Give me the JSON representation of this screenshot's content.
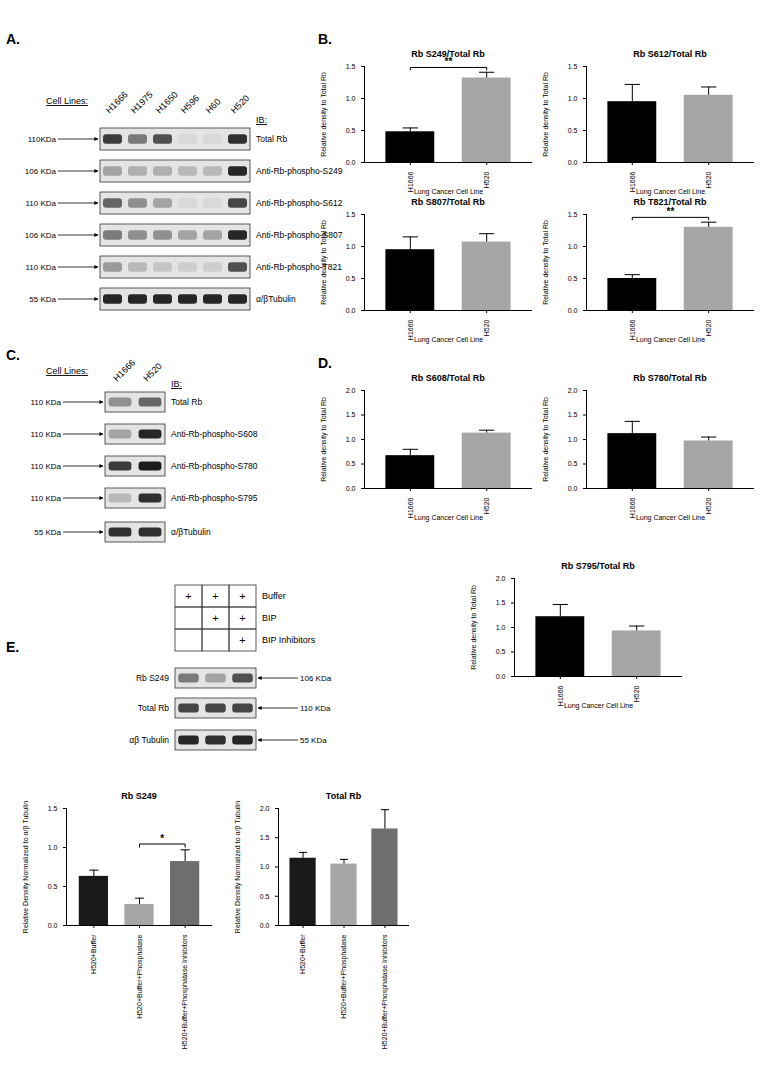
{
  "panels": [
    {
      "label": "A.",
      "blot": {
        "lane_title": "Cell Lines:",
        "lanes": [
          "H1666",
          "H1975",
          "H1650",
          "H596",
          "H60",
          "H520"
        ],
        "ib_title": "IB:",
        "rows": [
          {
            "name": "Total Rb",
            "kda": "110KDa",
            "bands": [
              0.8,
              0.5,
              0.7,
              0.05,
              0.05,
              0.85
            ]
          },
          {
            "name": "Anti-Rb-phospho-S249",
            "kda": "106 KDa",
            "bands": [
              0.3,
              0.25,
              0.25,
              0.2,
              0.2,
              0.9
            ]
          },
          {
            "name": "Anti-Rb-phospho-S612",
            "kda": "110 KDa",
            "bands": [
              0.6,
              0.4,
              0.3,
              0.05,
              0.05,
              0.75
            ]
          },
          {
            "name": "Anti-Rb-phospho-S807",
            "kda": "106 KDa",
            "bands": [
              0.5,
              0.4,
              0.4,
              0.3,
              0.3,
              0.9
            ]
          },
          {
            "name": "Anti-Rb-phospho-T821",
            "kda": "110 KDa",
            "bands": [
              0.35,
              0.2,
              0.15,
              0.1,
              0.1,
              0.7
            ]
          },
          {
            "name": "α/βTubulin",
            "kda": "55 KDa",
            "bands": [
              0.9,
              0.9,
              0.9,
              0.9,
              0.9,
              0.9
            ]
          }
        ]
      }
    },
    {
      "label": "B."
    },
    {
      "label": "C.",
      "blot": {
        "lane_title": "Cell Lines:",
        "lanes": [
          "H1666",
          "H520"
        ],
        "ib_title": "IB:",
        "rows": [
          {
            "name": "Total Rb",
            "kda": "110 KDa",
            "bands": [
              0.4,
              0.6
            ]
          },
          {
            "name": "Anti-Rb-phospho-S608",
            "kda": "110 KDa",
            "bands": [
              0.3,
              0.9
            ]
          },
          {
            "name": "Anti-Rb-phospho-S780",
            "kda": "110 KDa",
            "bands": [
              0.8,
              0.95
            ]
          },
          {
            "name": "Anti-Rb-phospho-S795",
            "kda": "110 KDa",
            "bands": [
              0.2,
              0.85
            ]
          },
          {
            "name": "α/βTubulin",
            "kda": "55 KDa",
            "bands": [
              0.85,
              0.85
            ]
          }
        ]
      }
    },
    {
      "label": "D."
    },
    {
      "label": "E.",
      "treatments": [
        {
          "name": "Buffer",
          "marks": [
            "+",
            "+",
            "+"
          ]
        },
        {
          "name": "BIP",
          "marks": [
            null,
            "+",
            "+"
          ]
        },
        {
          "name": "BIP Inhibitors",
          "marks": [
            null,
            null,
            "+"
          ]
        }
      ],
      "blot": {
        "rows": [
          {
            "name": "Rb S249",
            "kda": "106 KDa",
            "bands": [
              0.5,
              0.3,
              0.7
            ]
          },
          {
            "name": "Total Rb",
            "kda": "110 KDa",
            "bands": [
              0.75,
              0.75,
              0.75
            ]
          },
          {
            "name": "αβ Tubulin",
            "kda": "55 KDa",
            "bands": [
              0.9,
              0.85,
              0.9
            ]
          }
        ]
      }
    }
  ],
  "chart_data": [
    {
      "type": "bar",
      "title": "Rb S249/Total Rb",
      "x_label": "Lung Cancer Cell Line",
      "y_label": "Relative density to Total Rb",
      "categories": [
        "H1666",
        "H520"
      ],
      "values": [
        0.48,
        1.32
      ],
      "errors": [
        0.06,
        0.09
      ],
      "colors": [
        "#000000",
        "#a6a6a6"
      ],
      "ylim": [
        0,
        1.5
      ],
      "yticks": [
        {
          "value": 0,
          "label": "0.0"
        },
        0.5,
        {
          "value": 1,
          "label": "1.0"
        },
        1.5
      ],
      "significance": [
        {
          "between": [
            "H1666",
            "H520"
          ],
          "label": "**"
        }
      ]
    },
    {
      "type": "bar",
      "title": "Rb S612/Total Rb",
      "x_label": "Lung Cancer Cell Line",
      "y_label": "Relative density to Total Rb",
      "categories": [
        "H1666",
        "H520"
      ],
      "values": [
        0.95,
        1.05
      ],
      "errors": [
        0.27,
        0.13
      ],
      "colors": [
        "#000000",
        "#a6a6a6"
      ],
      "ylim": [
        0,
        1.5
      ],
      "yticks": [
        {
          "value": 0,
          "label": "0.0"
        },
        0.5,
        {
          "value": 1,
          "label": "1.0"
        },
        1.5
      ]
    },
    {
      "type": "bar",
      "title": "Rb S807/Total Rb",
      "x_label": "Lung Cancer Cell Line",
      "y_label": "Relative density to Total Rb",
      "categories": [
        "H1666",
        "H520"
      ],
      "values": [
        0.95,
        1.07
      ],
      "errors": [
        0.2,
        0.13
      ],
      "colors": [
        "#000000",
        "#a6a6a6"
      ],
      "ylim": [
        0,
        1.5
      ],
      "yticks": [
        {
          "value": 0,
          "label": "0.0"
        },
        0.5,
        {
          "value": 1,
          "label": "1.0"
        },
        1.5
      ]
    },
    {
      "type": "bar",
      "title": "Rb T821/Total Rb",
      "x_label": "Lung Cancer Cell Line",
      "y_label": "Relative density to Total Rb",
      "categories": [
        "H1666",
        "H520"
      ],
      "values": [
        0.5,
        1.3
      ],
      "errors": [
        0.06,
        0.08
      ],
      "colors": [
        "#000000",
        "#a6a6a6"
      ],
      "ylim": [
        0,
        1.5
      ],
      "yticks": [
        {
          "value": 0,
          "label": "0.0"
        },
        0.5,
        {
          "value": 1,
          "label": "1.0"
        },
        1.5
      ],
      "significance": [
        {
          "between": [
            "H1666",
            "H520"
          ],
          "label": "**"
        }
      ]
    },
    {
      "type": "bar",
      "title": "Rb S608/Total Rb",
      "x_label": "Lung Cancer Cell Line",
      "y_label": "Relative density to Total Rb",
      "categories": [
        "H1666",
        "H520"
      ],
      "values": [
        0.67,
        1.13
      ],
      "errors": [
        0.13,
        0.06
      ],
      "colors": [
        "#000000",
        "#a6a6a6"
      ],
      "ylim": [
        0,
        2
      ],
      "yticks": [
        {
          "value": 0,
          "label": "0.0"
        },
        0.5,
        {
          "value": 1,
          "label": "1.0"
        },
        1.5,
        {
          "value": 2,
          "label": "2.0"
        }
      ]
    },
    {
      "type": "bar",
      "title": "Rb S780/Total Rb",
      "x_label": "Lung Cancer Cell Line",
      "y_label": "Relative density to Total Rb",
      "categories": [
        "H1666",
        "H520"
      ],
      "values": [
        1.12,
        0.97
      ],
      "errors": [
        0.25,
        0.08
      ],
      "colors": [
        "#000000",
        "#a6a6a6"
      ],
      "ylim": [
        0,
        2
      ],
      "yticks": [
        {
          "value": 0,
          "label": "0.0"
        },
        0.5,
        {
          "value": 1,
          "label": "1.0"
        },
        1.5,
        {
          "value": 2,
          "label": "2.0"
        }
      ]
    },
    {
      "type": "bar",
      "title": "Rb  S795/Total Rb",
      "x_label": "Lung Cancer Cell Line",
      "y_label": "Relative density to Total Rb",
      "categories": [
        "H1666",
        "H520"
      ],
      "values": [
        1.22,
        0.93
      ],
      "errors": [
        0.25,
        0.1
      ],
      "colors": [
        "#000000",
        "#a6a6a6"
      ],
      "ylim": [
        0,
        2
      ],
      "yticks": [
        {
          "value": 0,
          "label": "0.0"
        },
        0.5,
        {
          "value": 1,
          "label": "1.0"
        },
        1.5,
        {
          "value": 2,
          "label": "2.0"
        }
      ]
    },
    {
      "type": "bar",
      "title": "Rb S249",
      "y_label": "Relative Density Normalized to α/β Tubulin",
      "categories": [
        "H520+Buffer",
        "H520+Buffer+Phosphatase",
        "H520+Buffer+Phosphatase Inhibitors"
      ],
      "values": [
        0.63,
        0.27,
        0.82
      ],
      "errors": [
        0.08,
        0.08,
        0.15
      ],
      "colors": [
        "#1a1a1a",
        "#a6a6a6",
        "#6e6e6e"
      ],
      "ylim": [
        0,
        1.5
      ],
      "yticks": [
        {
          "value": 0,
          "label": "0.0"
        },
        0.5,
        {
          "value": 1,
          "label": "1.0"
        },
        1.5
      ],
      "significance": [
        {
          "between": [
            "H520+Buffer+Phosphatase",
            "H520+Buffer+Phosphatase Inhibitors"
          ],
          "label": "*"
        }
      ]
    },
    {
      "type": "bar",
      "title": "Total Rb",
      "y_label": "Relative Density Normalized to α/β Tubulin",
      "categories": [
        "H520+Buffer",
        "H520+Buffer+Phosphatase",
        "H520+Buffer+Phosphatase Inhibitors"
      ],
      "values": [
        1.15,
        1.05,
        1.65
      ],
      "errors": [
        0.1,
        0.08,
        0.33
      ],
      "colors": [
        "#1a1a1a",
        "#a6a6a6",
        "#6e6e6e"
      ],
      "ylim": [
        0,
        2
      ],
      "yticks": [
        {
          "value": 0,
          "label": "0.0"
        },
        0.5,
        {
          "value": 1,
          "label": "1.0"
        },
        1.5,
        {
          "value": 2,
          "label": "2.0"
        }
      ]
    }
  ]
}
